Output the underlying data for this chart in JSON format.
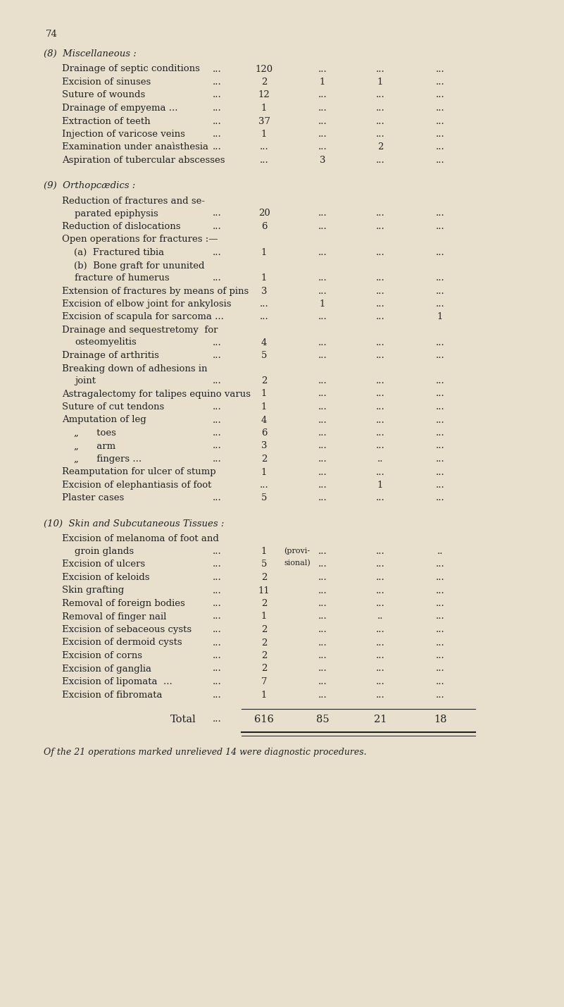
{
  "bg_color": "#e8e0cc",
  "text_color": "#222222",
  "page_number": "74",
  "sections": [
    {
      "heading": "(8)  Miscellaneous :",
      "entries": [
        {
          "label": "Drainage of septic conditions",
          "extra_dots": "...",
          "col1": "120",
          "col2": "...",
          "col3": "...",
          "col4": "..."
        },
        {
          "label": "Excision of sinuses",
          "extra_dots": "...",
          "col1": "2",
          "col2": "1",
          "col3": "1",
          "col4": "..."
        },
        {
          "label": "Suture of wounds",
          "extra_dots": "...",
          "col1": "12",
          "col2": "...",
          "col3": "...",
          "col4": "..."
        },
        {
          "label": "Drainage of empyema ...",
          "extra_dots": "...",
          "col1": "1",
          "col2": "...",
          "col3": "...",
          "col4": "..."
        },
        {
          "label": "Extraction of teeth",
          "extra_dots": "...",
          "col1": "37",
          "col2": "...",
          "col3": "...",
          "col4": "..."
        },
        {
          "label": "Injection of varicose veins",
          "extra_dots": "...",
          "col1": "1",
          "col2": "...",
          "col3": "...",
          "col4": "..."
        },
        {
          "label": "Examination under anaìsthesia",
          "extra_dots": "...",
          "col1": "...",
          "col2": "...",
          "col3": "2",
          "col4": "..."
        },
        {
          "label": "Aspiration of tubercular abscesses",
          "extra_dots": "",
          "col1": "...",
          "col2": "3",
          "col3": "...",
          "col4": "..."
        }
      ]
    },
    {
      "heading": "(9)  Orthopcædics :",
      "entries": [
        {
          "label": [
            "Reduction of fractures and se-",
            "parated epiphysis"
          ],
          "extra_dots": "...",
          "col1": "20",
          "col2": "...",
          "col3": "...",
          "col4": "..."
        },
        {
          "label": "Reduction of dislocations",
          "extra_dots": "...",
          "col1": "6",
          "col2": "...",
          "col3": "...",
          "col4": "..."
        },
        {
          "label": "Open operations for fractures :—",
          "extra_dots": "",
          "col1": "",
          "col2": "",
          "col3": "",
          "col4": ""
        },
        {
          "label": [
            "    (a)  Fractured tibia"
          ],
          "extra_dots": "...",
          "col1": "1",
          "col2": "...",
          "col3": "...",
          "col4": "..."
        },
        {
          "label": [
            "    (b)  Bone graft for ununited",
            "           fracture of humerus"
          ],
          "extra_dots": "...",
          "col1": "1",
          "col2": "...",
          "col3": "...",
          "col4": "..."
        },
        {
          "label": "Extension of fractures by means of pins",
          "extra_dots": "",
          "col1": "3",
          "col2": "...",
          "col3": "...",
          "col4": "..."
        },
        {
          "label": "Excision of elbow joint for ankylosis",
          "extra_dots": "",
          "col1": "...",
          "col2": "1",
          "col3": "...",
          "col4": "..."
        },
        {
          "label": "Excision of scapula for sarcoma ...",
          "extra_dots": "",
          "col1": "...",
          "col2": "...",
          "col3": "...",
          "col4": "1"
        },
        {
          "label": [
            "Drainage and sequestretomy  for",
            "    osteomyelitis"
          ],
          "extra_dots": "...",
          "col1": "4",
          "col2": "...",
          "col3": "...",
          "col4": "..."
        },
        {
          "label": "Drainage of arthritis",
          "extra_dots": "...",
          "col1": "5",
          "col2": "...",
          "col3": "...",
          "col4": "..."
        },
        {
          "label": [
            "Breaking down of adhesions in",
            "    joint"
          ],
          "extra_dots": "...",
          "col1": "2",
          "col2": "...",
          "col3": "...",
          "col4": "..."
        },
        {
          "label": "Astragalectomy for talipes equino varus",
          "extra_dots": "",
          "col1": "1",
          "col2": "...",
          "col3": "...",
          "col4": "..."
        },
        {
          "label": "Suture of cut tendons",
          "extra_dots": "...",
          "col1": "1",
          "col2": "...",
          "col3": "...",
          "col4": "..."
        },
        {
          "label": "Amputation of leg",
          "extra_dots": "...",
          "col1": "4",
          "col2": "...",
          "col3": "...",
          "col4": "..."
        },
        {
          "label": "    „      toes",
          "extra_dots": "...",
          "col1": "6",
          "col2": "...",
          "col3": "...",
          "col4": "..."
        },
        {
          "label": "    „      arm",
          "extra_dots": "...",
          "col1": "3",
          "col2": "...",
          "col3": "...",
          "col4": "..."
        },
        {
          "label": "    „      fingers ...",
          "extra_dots": "...",
          "col1": "2",
          "col2": "...",
          "col3": "..",
          "col4": "..."
        },
        {
          "label": "Reamputation for ulcer of stump",
          "extra_dots": "",
          "col1": "1",
          "col2": "...",
          "col3": "...",
          "col4": "..."
        },
        {
          "label": "Excision of elephantiasis of foot",
          "extra_dots": "",
          "col1": "...",
          "col2": "...",
          "col3": "1",
          "col4": "..."
        },
        {
          "label": "Plaster cases",
          "extra_dots": "...",
          "col1": "5",
          "col2": "...",
          "col3": "...",
          "col4": "..."
        }
      ]
    },
    {
      "heading": "(10)  Skin and Subcutaneous Tissues :",
      "entries": [
        {
          "label": [
            "Excision of melanoma of foot and",
            "    groin glands"
          ],
          "extra_dots": "...",
          "col1": "1",
          "col1note": "(provi-\nsional)",
          "col2": "...",
          "col3": "...",
          "col4": ".."
        },
        {
          "label": "Excision of ulcers",
          "extra_dots": "...",
          "col1": "5",
          "col2": "...",
          "col3": "...",
          "col4": "..."
        },
        {
          "label": "Excision of keloids",
          "extra_dots": "...",
          "col1": "2",
          "col2": "...",
          "col3": "...",
          "col4": "..."
        },
        {
          "label": "Skin grafting",
          "extra_dots": "...",
          "col1": "11",
          "col2": "...",
          "col3": "...",
          "col4": "..."
        },
        {
          "label": "Removal of foreign bodies",
          "extra_dots": "...",
          "col1": "2",
          "col2": "...",
          "col3": "...",
          "col4": "..."
        },
        {
          "label": "Removal of finger nail",
          "extra_dots": "...",
          "col1": "1",
          "col2": "...",
          "col3": "..",
          "col4": "..."
        },
        {
          "label": "Excision of sebaceous cysts",
          "extra_dots": "...",
          "col1": "2",
          "col2": "...",
          "col3": "...",
          "col4": "..."
        },
        {
          "label": "Excision of dermoid cysts",
          "extra_dots": "...",
          "col1": "2",
          "col2": "...",
          "col3": "...",
          "col4": "..."
        },
        {
          "label": "Excision of corns",
          "extra_dots": "...",
          "col1": "2",
          "col2": "...",
          "col3": "...",
          "col4": "..."
        },
        {
          "label": "Excision of ganglia",
          "extra_dots": "...",
          "col1": "2",
          "col2": "...",
          "col3": "...",
          "col4": "..."
        },
        {
          "label": "Excision of lipomata  ...",
          "extra_dots": "...",
          "col1": "7",
          "col2": "...",
          "col3": "...",
          "col4": "..."
        },
        {
          "label": "Excision of fibromata",
          "extra_dots": "...",
          "col1": "1",
          "col2": "...",
          "col3": "...",
          "col4": "..."
        }
      ]
    }
  ],
  "total_row": {
    "label": "Total",
    "dots": "...",
    "col1": "616",
    "col2": "85",
    "col3": "21",
    "col4": "18"
  },
  "footnote": "Of the 21 operations marked unrelieved 14 were diagnostic procedures."
}
